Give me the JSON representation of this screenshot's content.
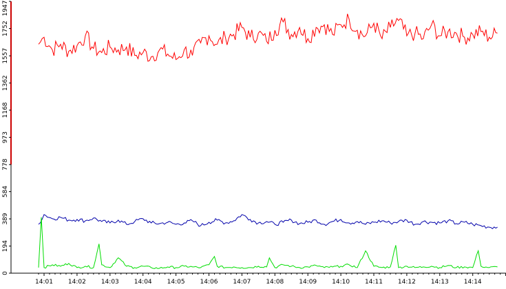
{
  "chart_data": {
    "type": "line",
    "title": "",
    "xlabel": "",
    "ylabel": "",
    "ylim": [
      0,
      1947
    ],
    "grid": false,
    "legend": "none",
    "y_ticks": [
      "0",
      "194",
      "389",
      "584",
      "778",
      "973",
      "1168",
      "1362",
      "1557",
      "1752",
      "1947"
    ],
    "x_ticks": [
      "14:01",
      "14:02",
      "14:03",
      "14:04",
      "14:05",
      "14:06",
      "14:07",
      "14:08",
      "14:09",
      "14:10",
      "14:11",
      "14:12",
      "14:13",
      "14:14"
    ],
    "y_axis_red_range": [
      778,
      1947
    ],
    "series": [
      {
        "color": "#ff0000",
        "x": [
          "14:00:50",
          "14:01:00",
          "14:01:15",
          "14:01:30",
          "14:01:45",
          "14:02:00",
          "14:02:15",
          "14:02:30",
          "14:02:45",
          "14:03:00",
          "14:03:15",
          "14:03:30",
          "14:03:45",
          "14:04:00",
          "14:04:15",
          "14:04:30",
          "14:04:45",
          "14:05:00",
          "14:05:15",
          "14:05:30",
          "14:05:45",
          "14:06:00",
          "14:06:15",
          "14:06:30",
          "14:06:45",
          "14:07:00",
          "14:07:15",
          "14:07:30",
          "14:07:45",
          "14:08:00",
          "14:08:15",
          "14:08:30",
          "14:08:45",
          "14:09:00",
          "14:09:15",
          "14:09:30",
          "14:09:45",
          "14:10:00",
          "14:10:15",
          "14:10:30",
          "14:10:45",
          "14:11:00",
          "14:11:15",
          "14:11:30",
          "14:11:45",
          "14:12:00",
          "14:12:15",
          "14:12:30",
          "14:12:45",
          "14:13:00",
          "14:13:15",
          "14:13:30",
          "14:13:45",
          "14:14:00",
          "14:14:15",
          "14:14:30",
          "14:14:45"
        ],
        "values": [
          1640,
          1690,
          1600,
          1640,
          1590,
          1630,
          1700,
          1610,
          1580,
          1620,
          1600,
          1620,
          1560,
          1580,
          1550,
          1600,
          1570,
          1530,
          1600,
          1560,
          1650,
          1700,
          1640,
          1690,
          1710,
          1760,
          1690,
          1720,
          1660,
          1740,
          1800,
          1710,
          1760,
          1680,
          1760,
          1780,
          1710,
          1780,
          1820,
          1740,
          1700,
          1790,
          1680,
          1760,
          1810,
          1700,
          1720,
          1680,
          1780,
          1700,
          1730,
          1720,
          1690,
          1710,
          1730,
          1690,
          1720
        ]
      },
      {
        "color": "#0000aa",
        "x": [
          "14:00:50",
          "14:01:00",
          "14:01:15",
          "14:01:30",
          "14:01:45",
          "14:02:00",
          "14:02:15",
          "14:02:30",
          "14:02:45",
          "14:03:00",
          "14:03:15",
          "14:03:30",
          "14:03:45",
          "14:04:00",
          "14:04:15",
          "14:04:30",
          "14:04:45",
          "14:05:00",
          "14:05:15",
          "14:05:30",
          "14:05:45",
          "14:06:00",
          "14:06:15",
          "14:06:30",
          "14:06:45",
          "14:07:00",
          "14:07:15",
          "14:07:30",
          "14:07:45",
          "14:08:00",
          "14:08:15",
          "14:08:30",
          "14:08:45",
          "14:09:00",
          "14:09:15",
          "14:09:30",
          "14:09:45",
          "14:10:00",
          "14:10:15",
          "14:10:30",
          "14:10:45",
          "14:11:00",
          "14:11:15",
          "14:11:30",
          "14:11:45",
          "14:12:00",
          "14:12:15",
          "14:12:30",
          "14:12:45",
          "14:13:00",
          "14:13:15",
          "14:13:30",
          "14:13:45",
          "14:14:00",
          "14:14:15",
          "14:14:30",
          "14:14:45"
        ],
        "values": [
          350,
          420,
          390,
          400,
          380,
          385,
          375,
          395,
          370,
          360,
          380,
          350,
          370,
          390,
          360,
          355,
          365,
          350,
          360,
          375,
          340,
          365,
          380,
          360,
          375,
          420,
          385,
          360,
          370,
          350,
          365,
          380,
          355,
          365,
          380,
          350,
          370,
          385,
          360,
          370,
          350,
          365,
          375,
          360,
          370,
          380,
          350,
          370,
          365,
          360,
          375,
          355,
          365,
          350,
          340,
          330,
          330
        ]
      },
      {
        "color": "#00dd00",
        "x": [
          "14:00:50",
          "14:00:55",
          "14:01:00",
          "14:01:15",
          "14:01:30",
          "14:01:45",
          "14:02:00",
          "14:02:15",
          "14:02:30",
          "14:02:40",
          "14:02:45",
          "14:03:00",
          "14:03:15",
          "14:03:30",
          "14:03:45",
          "14:04:00",
          "14:04:15",
          "14:04:30",
          "14:04:45",
          "14:05:00",
          "14:05:15",
          "14:05:30",
          "14:05:45",
          "14:06:00",
          "14:06:10",
          "14:06:15",
          "14:06:30",
          "14:06:45",
          "14:07:00",
          "14:07:15",
          "14:07:30",
          "14:07:45",
          "14:07:50",
          "14:08:00",
          "14:08:15",
          "14:08:30",
          "14:08:45",
          "14:09:00",
          "14:09:15",
          "14:09:30",
          "14:09:45",
          "14:10:00",
          "14:10:15",
          "14:10:30",
          "14:10:45",
          "14:11:00",
          "14:11:15",
          "14:11:30",
          "14:11:40",
          "14:11:45",
          "14:12:00",
          "14:12:15",
          "14:12:30",
          "14:12:45",
          "14:13:00",
          "14:13:15",
          "14:13:30",
          "14:13:45",
          "14:14:00",
          "14:14:10",
          "14:14:15",
          "14:14:30",
          "14:14:45"
        ],
        "values": [
          40,
          400,
          40,
          60,
          50,
          70,
          40,
          50,
          40,
          210,
          60,
          40,
          110,
          50,
          40,
          50,
          40,
          35,
          45,
          40,
          50,
          45,
          40,
          60,
          120,
          50,
          40,
          45,
          40,
          40,
          50,
          45,
          110,
          40,
          60,
          50,
          40,
          45,
          55,
          40,
          45,
          50,
          60,
          40,
          160,
          50,
          40,
          45,
          200,
          40,
          50,
          40,
          45,
          50,
          40,
          55,
          40,
          45,
          40,
          160,
          50,
          40,
          45
        ]
      }
    ]
  }
}
